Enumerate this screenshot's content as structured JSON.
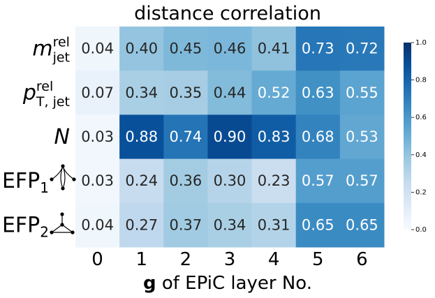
{
  "chart_data": {
    "type": "heatmap",
    "title": "distance correlation",
    "xlabel_bold": "g",
    "xlabel_rest": " of EPiC layer No.",
    "categories": [
      "0",
      "1",
      "2",
      "3",
      "4",
      "5",
      "6"
    ],
    "rows": [
      {
        "label_main": "m",
        "label_sup": "rel",
        "label_sub": "jet",
        "values": [
          0.04,
          0.4,
          0.45,
          0.46,
          0.41,
          0.73,
          0.72
        ]
      },
      {
        "label_main": "p",
        "label_sup": "rel",
        "label_sub": "T, jet",
        "values": [
          0.07,
          0.34,
          0.35,
          0.44,
          0.52,
          0.63,
          0.55
        ]
      },
      {
        "label_main": "N",
        "label_sup": "",
        "label_sub": "",
        "values": [
          0.03,
          0.88,
          0.74,
          0.9,
          0.83,
          0.68,
          0.53
        ]
      },
      {
        "label_main": "EFP",
        "label_sup": "",
        "label_sub": "1",
        "values": [
          0.03,
          0.24,
          0.36,
          0.3,
          0.23,
          0.57,
          0.57
        ]
      },
      {
        "label_main": "EFP",
        "label_sup": "",
        "label_sub": "2",
        "values": [
          0.04,
          0.27,
          0.37,
          0.34,
          0.31,
          0.65,
          0.65
        ]
      }
    ],
    "vmin": 0.0,
    "vmax": 1.0,
    "colorbar_ticks": [
      "0.0",
      "0.2",
      "0.4",
      "0.6",
      "0.8",
      "1.0"
    ],
    "colormap": "Blues",
    "colors": {
      "low": "#f7fbff",
      "high": "#08306b"
    }
  }
}
